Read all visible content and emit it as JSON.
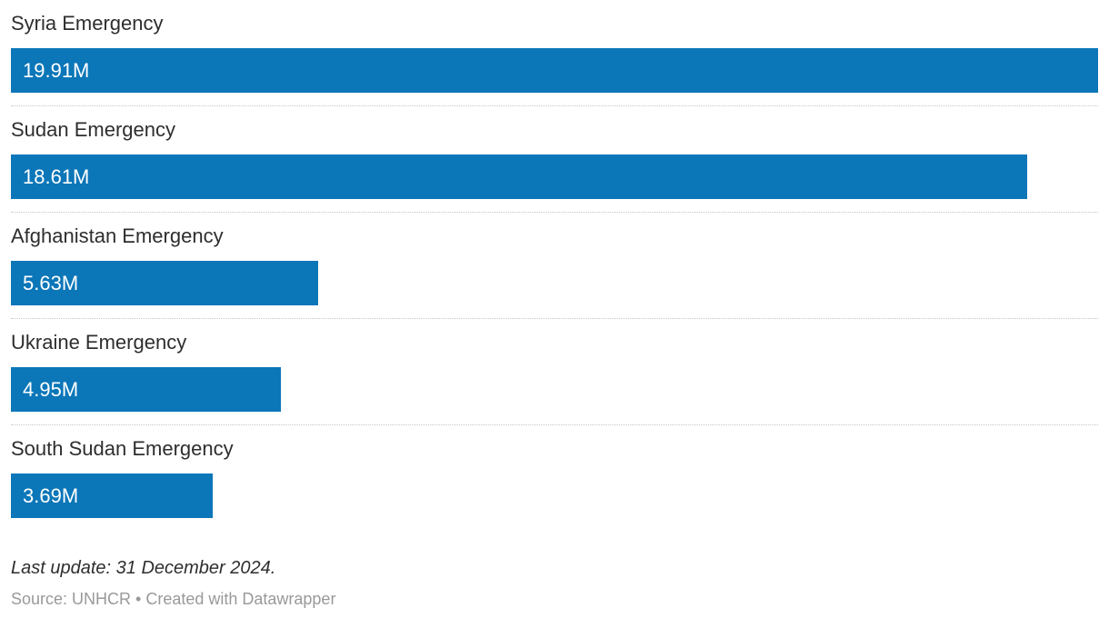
{
  "chart_data": {
    "type": "bar",
    "orientation": "horizontal",
    "categories": [
      "Syria Emergency",
      "Sudan Emergency",
      "Afghanistan Emergency",
      "Ukraine Emergency",
      "South Sudan Emergency"
    ],
    "values": [
      19.91,
      18.61,
      5.63,
      4.95,
      3.69
    ],
    "value_labels": [
      "19.91M",
      "18.61M",
      "5.63M",
      "4.95M",
      "3.69M"
    ],
    "unit": "M",
    "max_value": 19.91,
    "bar_color": "#0b76b8",
    "value_label_position": "inside-left",
    "value_label_color": "#ffffff",
    "grid": false,
    "legend": "none",
    "title": "",
    "xlabel": "",
    "ylabel": "",
    "xlim": [
      0,
      19.91
    ]
  },
  "footer": {
    "last_update": "Last update: 31 December 2024.",
    "source": "Source: UNHCR • Created with Datawrapper"
  }
}
